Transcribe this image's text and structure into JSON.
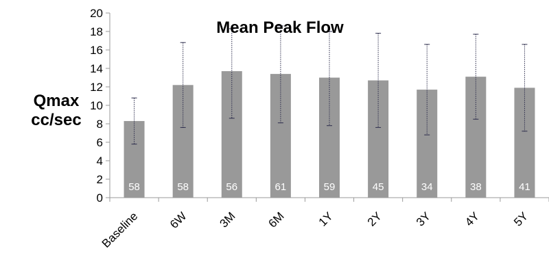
{
  "chart_data": {
    "type": "bar",
    "title": "Mean Peak Flow",
    "ylabel": [
      "Qmax",
      "cc/sec"
    ],
    "xlabel": "",
    "categories": [
      "Baseline",
      "6W",
      "3M",
      "6M",
      "1Y",
      "2Y",
      "3Y",
      "4Y",
      "5Y"
    ],
    "values": [
      8.3,
      12.2,
      13.7,
      13.4,
      13.0,
      12.7,
      11.7,
      13.1,
      11.9
    ],
    "error_low": [
      5.8,
      7.6,
      8.6,
      8.1,
      7.8,
      7.6,
      6.8,
      8.5,
      7.2
    ],
    "error_high": [
      10.8,
      16.8,
      18.3,
      18.6,
      18.0,
      17.8,
      16.6,
      17.7,
      16.6
    ],
    "bar_labels": [
      "58",
      "58",
      "56",
      "61",
      "59",
      "45",
      "34",
      "38",
      "41"
    ],
    "ylim": [
      0,
      20
    ],
    "yticks": [
      0,
      2,
      4,
      6,
      8,
      10,
      12,
      14,
      16,
      18,
      20
    ],
    "grid": false,
    "legend": "none",
    "colors": {
      "bar": "#999999",
      "bar_label": "#ffffff",
      "error_bar": "#2a2a4a",
      "axis": "#9a9a9a",
      "text": "#000000"
    }
  }
}
